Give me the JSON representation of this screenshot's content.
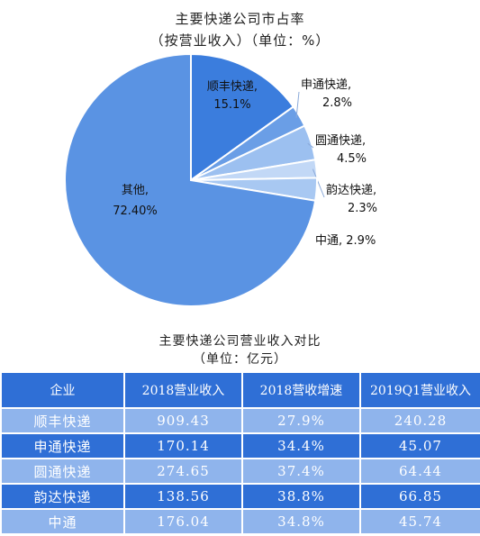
{
  "chart_data": {
    "type": "pie",
    "title": "主要快递公司市占率",
    "subtitle": "（按营业收入）（单位：%）",
    "slices": [
      {
        "name": "顺丰快递",
        "value": 15.1,
        "value_label": "15.1%",
        "color": "#3b7ddd",
        "label_style": "inside"
      },
      {
        "name": "申通快递",
        "value": 2.8,
        "value_label": "2.8%",
        "color": "#6a9ee6",
        "label_style": "outside-comma"
      },
      {
        "name": "圆通快递",
        "value": 4.5,
        "value_label": "4.5%",
        "color": "#9cc0f0",
        "label_style": "outside-comma"
      },
      {
        "name": "韵达快递",
        "value": 2.3,
        "value_label": "2.3%",
        "color": "#c2d8f6",
        "label_style": "outside-comma"
      },
      {
        "name": "中通",
        "value": 2.9,
        "value_label": "2.9%",
        "color": "#a8c8f2",
        "label_style": "outside-inline"
      },
      {
        "name": "其他",
        "value": 72.4,
        "value_label": "72.40%",
        "color": "#5a93e3",
        "label_style": "inside"
      }
    ]
  },
  "table": {
    "title": "主要快递公司营业收入对比",
    "subtitle": "（单位：亿元）",
    "headers": [
      "企业",
      "2018营业收入",
      "2018营收增速",
      "2019Q1营业收入"
    ],
    "rows": [
      [
        "顺丰快递",
        "909.43",
        "27.9%",
        "240.28"
      ],
      [
        "申通快递",
        "170.14",
        "34.4%",
        "45.07"
      ],
      [
        "圆通快递",
        "274.65",
        "37.4%",
        "64.44"
      ],
      [
        "韵达快递",
        "138.56",
        "38.8%",
        "66.85"
      ],
      [
        "中通",
        "176.04",
        "34.8%",
        "45.74"
      ]
    ],
    "colors": {
      "header": "#2f6fd6",
      "row_light": "#8fb4ec",
      "row_dark": "#2f6fd6",
      "text": "#ffffff"
    }
  }
}
